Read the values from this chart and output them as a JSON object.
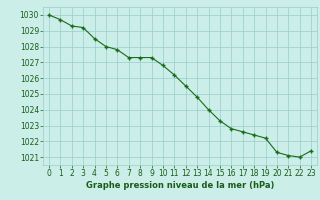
{
  "hours": [
    0,
    1,
    2,
    3,
    4,
    5,
    6,
    7,
    8,
    9,
    10,
    11,
    12,
    13,
    14,
    15,
    16,
    17,
    18,
    19,
    20,
    21,
    22,
    23
  ],
  "pressure": [
    1030.0,
    1029.7,
    1029.3,
    1029.2,
    1028.5,
    1028.0,
    1027.8,
    1027.3,
    1027.3,
    1027.3,
    1026.8,
    1026.2,
    1025.5,
    1024.8,
    1024.0,
    1023.3,
    1022.8,
    1022.6,
    1022.4,
    1022.2,
    1021.3,
    1021.1,
    1021.0,
    1021.4
  ],
  "line_color": "#1a6b1a",
  "marker": "+",
  "marker_size": 3.5,
  "marker_lw": 1.0,
  "line_width": 0.8,
  "bg_color": "#cceee8",
  "grid_color": "#99cccc",
  "xlabel": "Graphe pression niveau de la mer (hPa)",
  "xlabel_color": "#1a5c1a",
  "tick_color": "#1a5c1a",
  "ylim": [
    1020.5,
    1030.5
  ],
  "yticks": [
    1021,
    1022,
    1023,
    1024,
    1025,
    1026,
    1027,
    1028,
    1029,
    1030
  ],
  "xlim": [
    -0.5,
    23.5
  ],
  "xticks": [
    0,
    1,
    2,
    3,
    4,
    5,
    6,
    7,
    8,
    9,
    10,
    11,
    12,
    13,
    14,
    15,
    16,
    17,
    18,
    19,
    20,
    21,
    22,
    23
  ],
  "tick_fontsize": 5.5,
  "xlabel_fontsize": 6.0
}
